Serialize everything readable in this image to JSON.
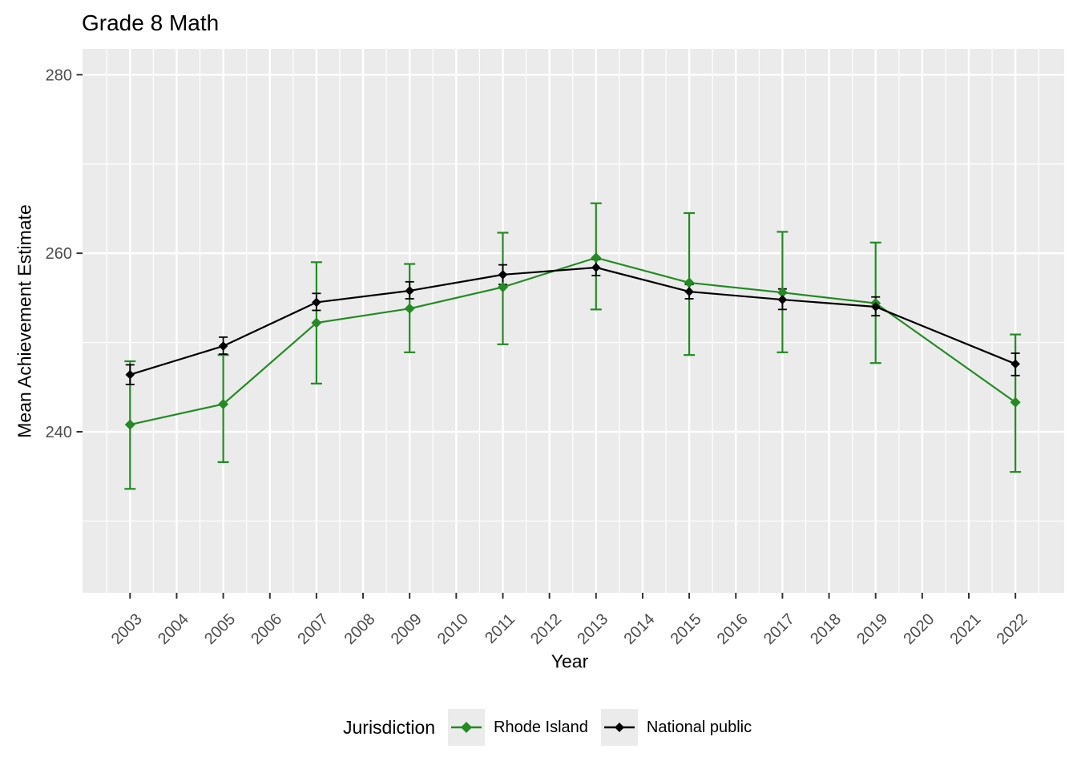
{
  "title": "Grade 8 Math",
  "axes": {
    "x_label": "Year",
    "y_label": "Mean Achievement Estimate"
  },
  "legend": {
    "title": "Jurisdiction",
    "position": "bottom",
    "items": [
      {
        "label": "Rhode Island",
        "color": "#228B22"
      },
      {
        "label": "National public",
        "color": "#000000"
      }
    ]
  },
  "colors": {
    "panel_bg": "#EBEBEB",
    "grid": "#FFFFFF",
    "tick_mark": "#333333",
    "tick_label": "#4D4D4D",
    "legend_key_bg": "#EBEBEB",
    "rhode_island_green": "#228B22",
    "national_black": "#000000"
  },
  "chart_data": {
    "type": "line",
    "title": "Grade 8 Math",
    "xlabel": "Year",
    "ylabel": "Mean Achievement Estimate",
    "x_ticks": [
      2003,
      2004,
      2005,
      2006,
      2007,
      2008,
      2009,
      2010,
      2011,
      2012,
      2013,
      2014,
      2015,
      2016,
      2017,
      2018,
      2019,
      2020,
      2021,
      2022
    ],
    "y_ticks": [
      240,
      260,
      280
    ],
    "xlim": [
      2002.5,
      2022.5
    ],
    "ylim": [
      222,
      283
    ],
    "grid": true,
    "error_bars": true,
    "legend_position": "bottom",
    "series": [
      {
        "name": "Rhode Island",
        "color": "#228B22",
        "points": [
          {
            "year": 2003,
            "value": 240.8,
            "lo": 233.6,
            "hi": 247.9
          },
          {
            "year": 2005,
            "value": 243.1,
            "lo": 236.6,
            "hi": 248.6
          },
          {
            "year": 2007,
            "value": 252.2,
            "lo": 245.4,
            "hi": 259.0
          },
          {
            "year": 2009,
            "value": 253.8,
            "lo": 248.9,
            "hi": 258.8
          },
          {
            "year": 2011,
            "value": 256.2,
            "lo": 249.8,
            "hi": 262.3
          },
          {
            "year": 2013,
            "value": 259.5,
            "lo": 253.7,
            "hi": 265.6
          },
          {
            "year": 2015,
            "value": 256.7,
            "lo": 248.6,
            "hi": 264.5
          },
          {
            "year": 2017,
            "value": 255.6,
            "lo": 248.9,
            "hi": 262.4
          },
          {
            "year": 2019,
            "value": 254.4,
            "lo": 247.7,
            "hi": 261.2
          },
          {
            "year": 2022,
            "value": 243.3,
            "lo": 235.5,
            "hi": 250.9
          }
        ]
      },
      {
        "name": "National public",
        "color": "#000000",
        "points": [
          {
            "year": 2003,
            "value": 246.4,
            "lo": 245.3,
            "hi": 247.5
          },
          {
            "year": 2005,
            "value": 249.6,
            "lo": 248.7,
            "hi": 250.6
          },
          {
            "year": 2007,
            "value": 254.5,
            "lo": 253.6,
            "hi": 255.5
          },
          {
            "year": 2009,
            "value": 255.8,
            "lo": 254.9,
            "hi": 256.8
          },
          {
            "year": 2011,
            "value": 257.6,
            "lo": 256.5,
            "hi": 258.7
          },
          {
            "year": 2013,
            "value": 258.4,
            "lo": 257.5,
            "hi": 259.3
          },
          {
            "year": 2015,
            "value": 255.7,
            "lo": 254.9,
            "hi": 256.5
          },
          {
            "year": 2017,
            "value": 254.8,
            "lo": 253.7,
            "hi": 256.0
          },
          {
            "year": 2019,
            "value": 254.0,
            "lo": 253.0,
            "hi": 255.1
          },
          {
            "year": 2022,
            "value": 247.6,
            "lo": 246.3,
            "hi": 248.8
          }
        ]
      }
    ]
  }
}
